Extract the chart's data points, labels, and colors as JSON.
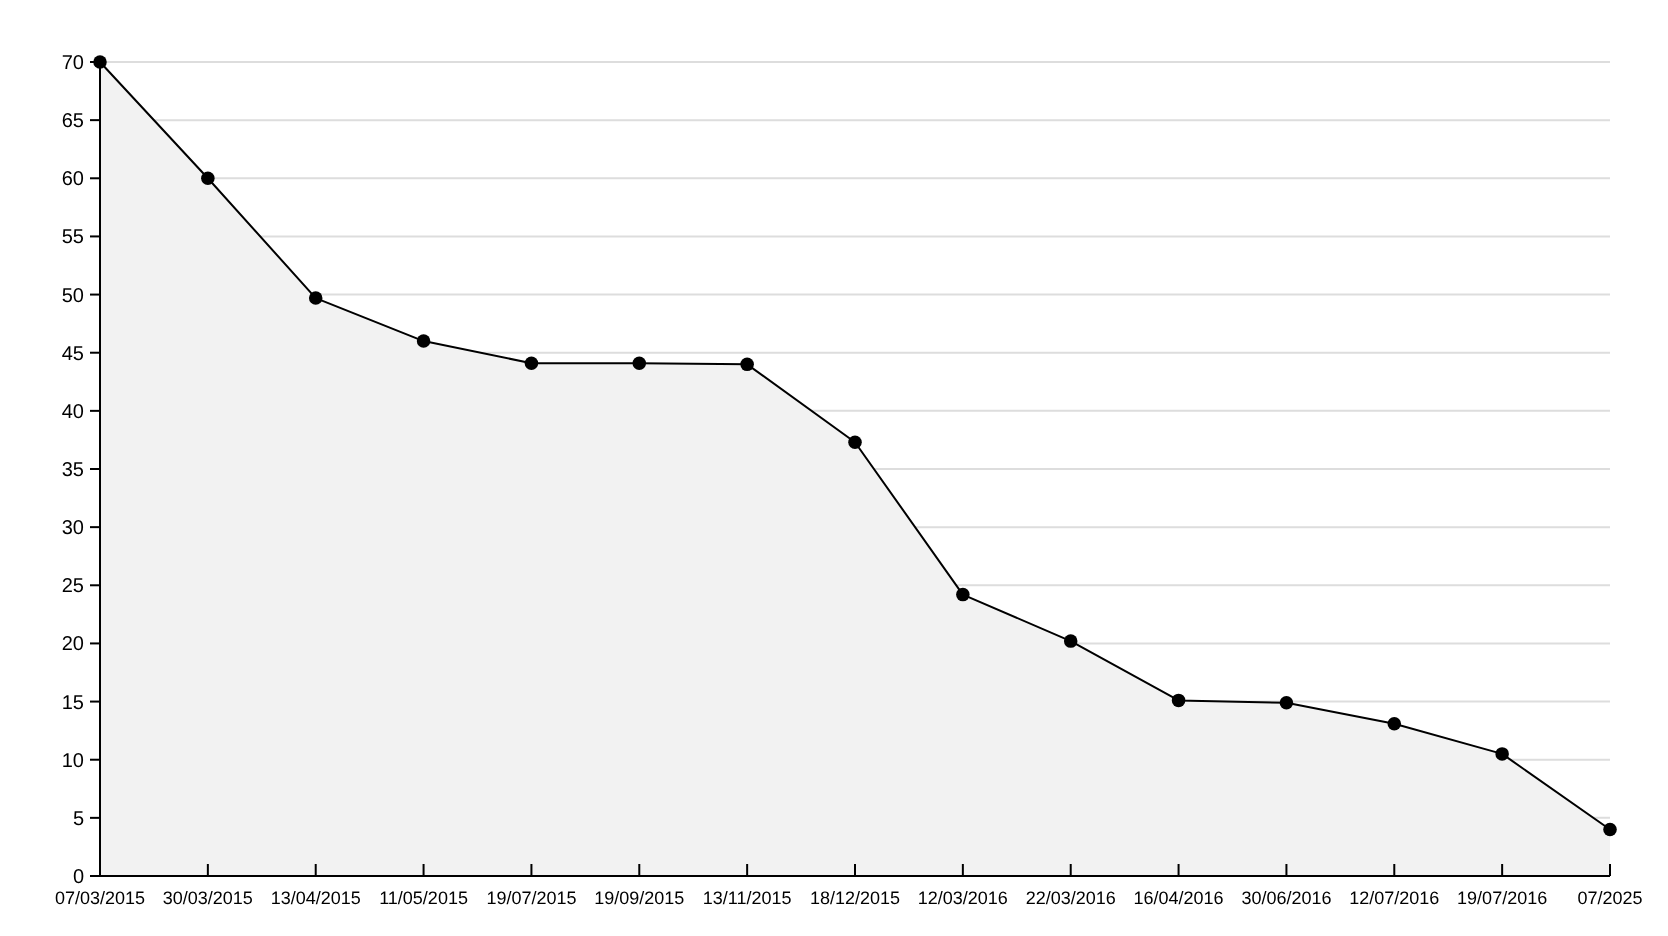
{
  "chart_data": {
    "type": "area",
    "categories": [
      "07/03/2015",
      "30/03/2015",
      "13/04/2015",
      "11/05/2015",
      "19/07/2015",
      "19/09/2015",
      "13/11/2015",
      "18/12/2015",
      "12/03/2016",
      "22/03/2016",
      "16/04/2016",
      "30/06/2016",
      "12/07/2016",
      "19/07/2016",
      "07/2025"
    ],
    "series": [
      {
        "color": "#000000",
        "values": [
          70,
          60,
          49.7,
          46,
          44.1,
          44.1,
          44,
          37.3,
          24.2,
          20.2,
          15.1,
          14.9,
          13.1,
          10.5,
          4
        ]
      }
    ],
    "ylim": [
      0,
      70
    ],
    "yticks": [
      0,
      5,
      10,
      15,
      20,
      25,
      30,
      35,
      40,
      45,
      50,
      55,
      60,
      65,
      70
    ],
    "grid": "y",
    "marker": "circle",
    "line_style": "solid"
  }
}
